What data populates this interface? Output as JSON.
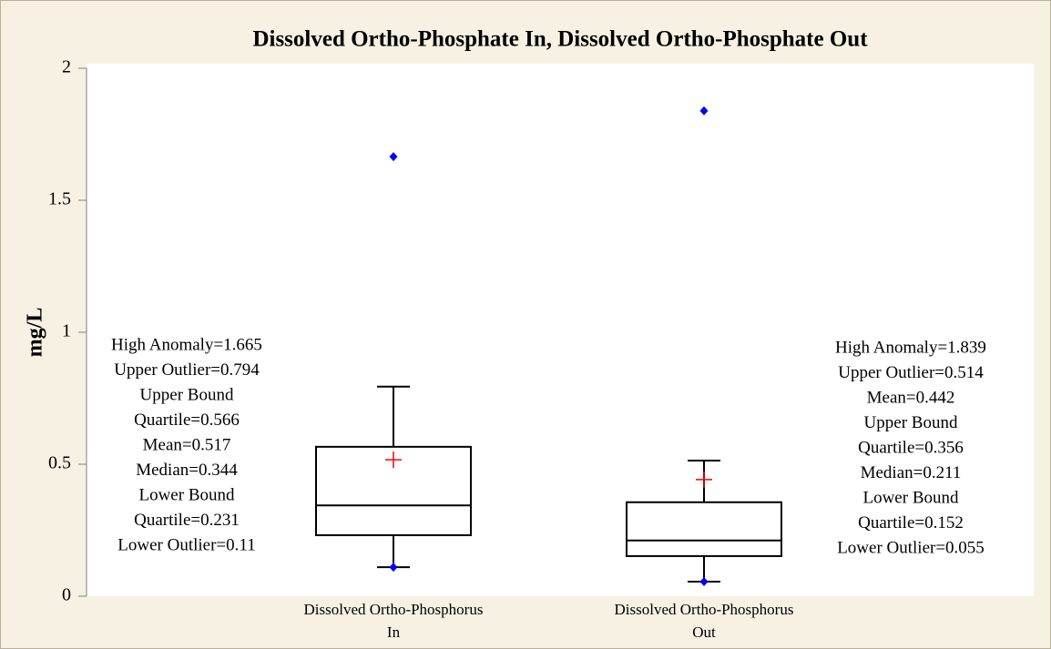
{
  "chart_data": {
    "type": "box",
    "title": "Dissolved Ortho-Phosphate In, Dissolved Ortho-Phosphate Out",
    "ylabel": "mg/L",
    "ylim": [
      0,
      2
    ],
    "yticks": [
      0,
      0.5,
      1,
      1.5,
      2
    ],
    "box_color": "#000000",
    "mean_color": "#ff0000",
    "point_color": "#0000ff",
    "boxes": [
      {
        "category": "Dissolved Ortho-Phosphorus In",
        "whisker_low": 0.11,
        "q1": 0.231,
        "median": 0.344,
        "q3": 0.566,
        "whisker_high": 0.794,
        "mean": 0.517,
        "points": [
          1.665,
          0.11
        ],
        "annotation": [
          "High Anomaly=1.665",
          "Upper Outlier=0.794",
          "Upper Bound",
          "Quartile=0.566",
          "Mean=0.517",
          "Median=0.344",
          "Lower Bound",
          "Quartile=0.231",
          "Lower Outlier=0.11"
        ]
      },
      {
        "category": "Dissolved Ortho-Phosphorus Out",
        "whisker_low": 0.055,
        "q1": 0.152,
        "median": 0.211,
        "q3": 0.356,
        "whisker_high": 0.514,
        "mean": 0.442,
        "points": [
          1.839,
          0.055
        ],
        "annotation": [
          "High Anomaly=1.839",
          "Upper Outlier=0.514",
          "Mean=0.442",
          "Upper Bound",
          "Quartile=0.356",
          "Median=0.211",
          "Lower Bound",
          "Quartile=0.152",
          "Lower Outlier=0.055"
        ]
      }
    ]
  }
}
